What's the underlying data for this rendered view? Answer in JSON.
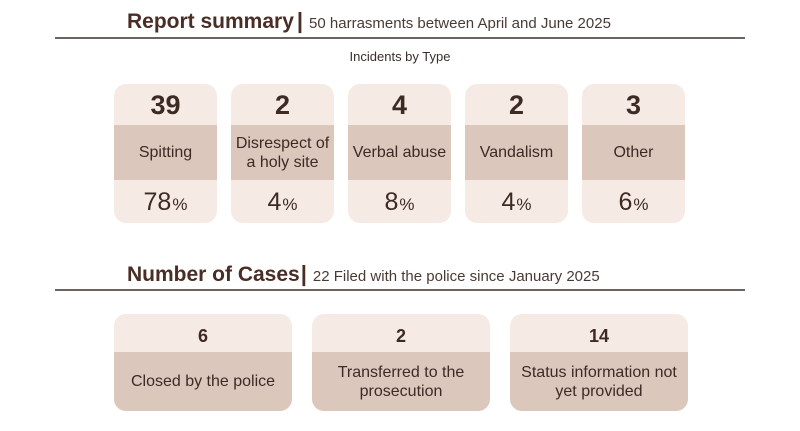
{
  "summary": {
    "title": "Report summary",
    "divider": "|",
    "subtitle": "50 harrasments  between April and June 2025",
    "caption": "Incidents by Type",
    "types": [
      {
        "count": "39",
        "label": "Spitting",
        "percent": "78",
        "unit": "%"
      },
      {
        "count": "2",
        "label": "Disrespect of a holy site",
        "percent": "4",
        "unit": "%"
      },
      {
        "count": "4",
        "label": "Verbal abuse",
        "percent": "8",
        "unit": "%"
      },
      {
        "count": "2",
        "label": "Vandalism",
        "percent": "4",
        "unit": "%"
      },
      {
        "count": "3",
        "label": "Other",
        "percent": "6",
        "unit": "%"
      }
    ]
  },
  "cases": {
    "title": "Number of Cases",
    "divider": "|",
    "subtitle": "22 Filed with the police since January 2025",
    "items": [
      {
        "count": "6",
        "label": "Closed by the police"
      },
      {
        "count": "2",
        "label": "Transferred to the prosecution"
      },
      {
        "count": "14",
        "label": "Status information not yet provided"
      }
    ]
  }
}
